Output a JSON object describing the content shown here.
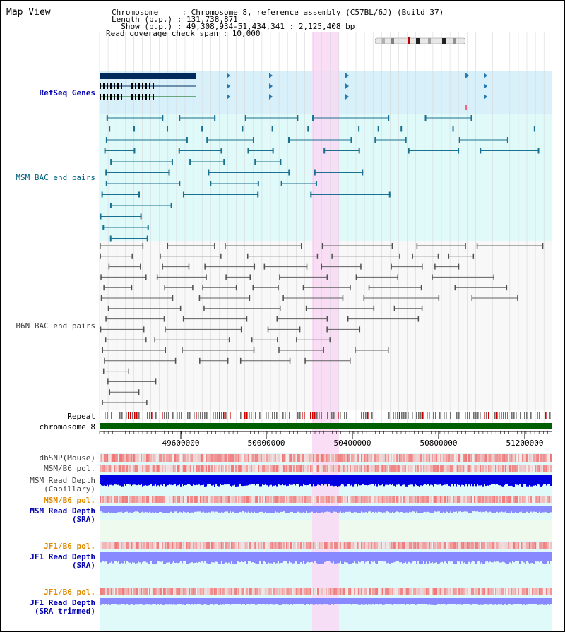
{
  "title": "Map View",
  "header": {
    "chromosome": "Chromosome     : Chromosome 8, reference assembly (C57BL/6J) (Build 37)",
    "length": "Length (b.p.) : 131,738,871",
    "show": "  Show (b.p.) : 49,308,934-51,434,341 : 2,125,408 bp",
    "coverage": "Read coverage check span : 10,000"
  },
  "tracks": {
    "refseq": "RefSeq Genes",
    "msm_bac": "MSM BAC end pairs",
    "b6n_bac": "B6N BAC end pairs",
    "repeat": "Repeat",
    "chromosome": "chromosome 8",
    "dbsnp": "dbSNP(Mouse)",
    "msm_pol1": "MSM/B6 pol.",
    "msm_depth_cap_1": "MSM Read Depth",
    "msm_depth_cap_2": "(Capillary)",
    "msm_pol2": "MSM/B6 pol.",
    "msm_depth_sra_1": "MSM Read Depth",
    "msm_depth_sra_2": "(SRA)",
    "jf1_pol1": "JF1/B6 pol.",
    "jf1_depth_sra_1": "JF1 Read Depth",
    "jf1_depth_sra_2": "(SRA)",
    "jf1_pol2": "JF1/B6 pol.",
    "jf1_depth_trim_1": "JF1 Read Depth",
    "jf1_depth_trim_2": "(SRA trimmed)"
  },
  "axis": {
    "ticks": [
      "49600000",
      "50000000",
      "50400000",
      "50800000",
      "51200000"
    ]
  },
  "colors": {
    "highlight": "#f8d8f4",
    "refseq_bg": "#d8f0fa",
    "track_bg": "#e0fafa",
    "chromosome": "#006000",
    "snp": "#f06060",
    "depth_dark": "#0000e0",
    "depth_light": "#8888ff"
  }
}
